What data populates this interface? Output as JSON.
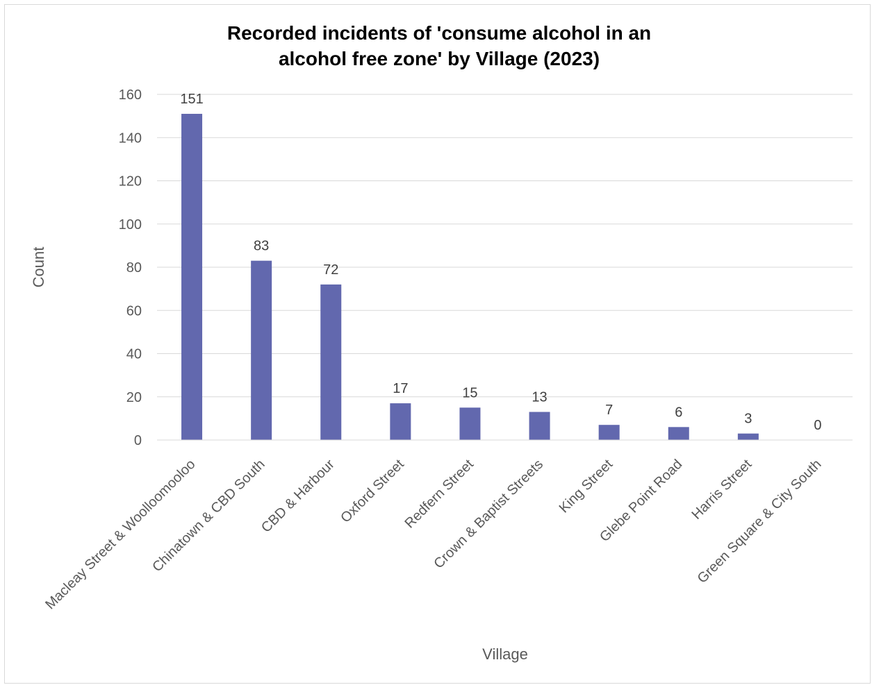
{
  "chart_data": {
    "type": "bar",
    "title_lines": [
      "Recorded incidents of 'consume alcohol in an",
      "alcohol free zone' by Village (2023)"
    ],
    "xlabel": "Village",
    "ylabel": "Count",
    "ylim": [
      0,
      160
    ],
    "yticks": [
      0,
      20,
      40,
      60,
      80,
      100,
      120,
      140,
      160
    ],
    "grid": true,
    "legend": "none",
    "bar_color": "#6268AE",
    "categories": [
      "Macleay Street & Woolloomooloo",
      "Chinatown & CBD South",
      "CBD & Harbour",
      "Oxford Street",
      "Redfern Street",
      "Crown & Baptist Streets",
      "King Street",
      "Glebe Point Road",
      "Harris Street",
      "Green Square & City South"
    ],
    "values": [
      151,
      83,
      72,
      17,
      15,
      13,
      7,
      6,
      3,
      0
    ]
  }
}
